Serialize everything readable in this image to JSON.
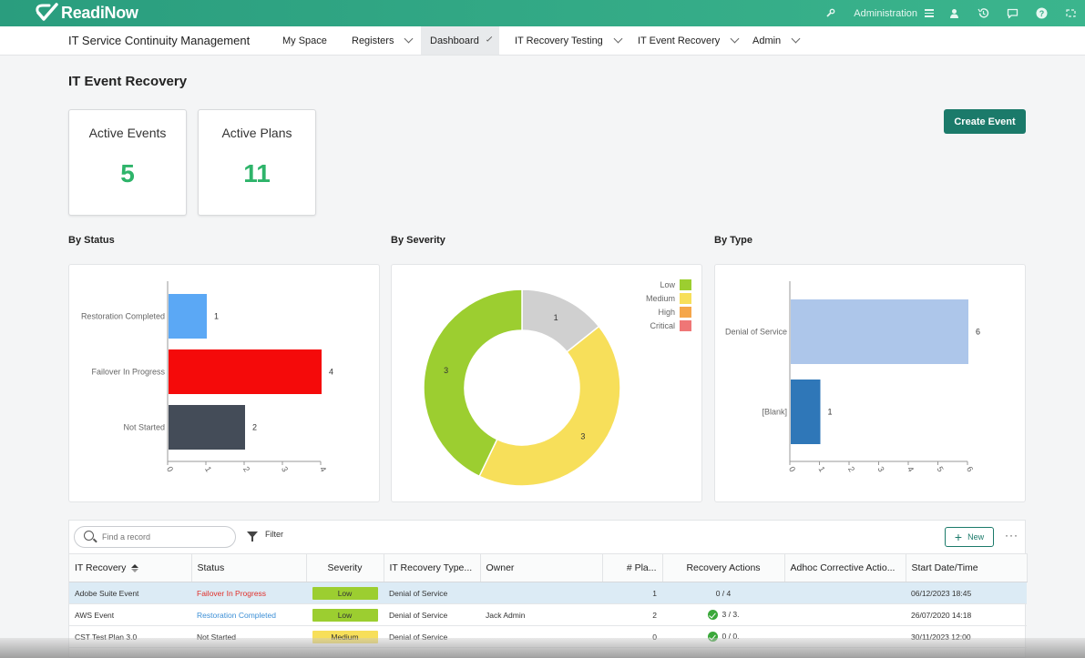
{
  "brand": {
    "name": "ReadiNow"
  },
  "topbar": {
    "admin_label": "Administration",
    "icons": [
      "wrench-icon",
      "user-icon",
      "history-icon",
      "chat-icon",
      "help-icon",
      "expand-icon"
    ]
  },
  "nav": {
    "app_name": "IT Service Continuity Management",
    "items": [
      {
        "label": "My Space",
        "has_menu": false
      },
      {
        "label": "Registers",
        "has_menu": true
      },
      {
        "label": "Dashboard",
        "has_menu": true,
        "active": true
      },
      {
        "label": "IT Recovery Testing",
        "has_menu": true
      },
      {
        "label": "IT Event Recovery",
        "has_menu": true
      },
      {
        "label": "Admin",
        "has_menu": true
      }
    ]
  },
  "page": {
    "title": "IT Event Recovery",
    "create_button": "Create Event"
  },
  "stats": [
    {
      "label": "Active Events",
      "value": "5"
    },
    {
      "label": "Active Plans",
      "value": "11"
    }
  ],
  "sections": {
    "by_status": "By Status",
    "by_severity": "By Severity",
    "by_type": "By Type"
  },
  "colors": {
    "accent": "#1b7a6a",
    "topbar": "#3bb58d",
    "stat_value": "#2eb46a"
  },
  "chart_data": [
    {
      "type": "bar",
      "orientation": "horizontal",
      "categories": [
        "Restoration Completed",
        "Failover In Progress",
        "Not Started"
      ],
      "values": [
        1,
        4,
        2
      ],
      "colors": [
        "#5ba8f5",
        "#f50a0a",
        "#444c58"
      ],
      "xlim": [
        0,
        4
      ],
      "ticks": [
        "0",
        "1",
        "2",
        "3",
        "4"
      ]
    },
    {
      "type": "pie",
      "donut": true,
      "categories": [
        "Low",
        "Medium",
        "High",
        "Critical"
      ],
      "values": [
        3,
        3,
        0,
        0
      ],
      "unlabeled_value": 1,
      "slices": [
        {
          "label": "1",
          "value": 1,
          "color": "#d0d0d0"
        },
        {
          "label": "3",
          "value": 3,
          "color": "#f7df5a"
        },
        {
          "label": "3",
          "value": 3,
          "color": "#9cce30"
        }
      ],
      "legend": [
        {
          "name": "Low",
          "color": "#9cce30"
        },
        {
          "name": "Medium",
          "color": "#f7df5a"
        },
        {
          "name": "High",
          "color": "#f5a64a"
        },
        {
          "name": "Critical",
          "color": "#ef7676"
        }
      ],
      "legend_position": "top-right"
    },
    {
      "type": "bar",
      "orientation": "horizontal",
      "categories": [
        "Denial of Service",
        "[Blank]"
      ],
      "values": [
        6,
        1
      ],
      "colors": [
        "#adc6ea",
        "#2f77b8"
      ],
      "xlim": [
        0,
        6
      ],
      "ticks": [
        "0",
        "1",
        "2",
        "3",
        "4",
        "5",
        "6"
      ]
    }
  ],
  "grid": {
    "search_placeholder": "Find a record",
    "filter_label": "Filter",
    "new_label": "New",
    "more_label": "···",
    "columns": [
      "IT Recovery",
      "Status",
      "Severity",
      "IT Recovery Type...",
      "Owner",
      "# Pla...",
      "Recovery Actions",
      "Adhoc Corrective Actio...",
      "Start Date/Time"
    ],
    "rows": [
      {
        "name": "Adobe Suite Event",
        "status": "Failover In Progress",
        "severity": "Low",
        "type": "Denial of Service",
        "owner": "",
        "plans": "1",
        "actions": "0 / 4",
        "actions_ok": false,
        "adhoc": "",
        "start": "06/12/2023 18:45"
      },
      {
        "name": "AWS Event",
        "status": "Restoration Completed",
        "severity": "Low",
        "type": "Denial of Service",
        "owner": "Jack Admin",
        "plans": "2",
        "actions": "3 / 3.",
        "actions_ok": true,
        "adhoc": "",
        "start": "26/07/2020 14:18"
      },
      {
        "name": "CST Test Plan 3.0",
        "status": "Not Started",
        "severity": "Medium",
        "type": "Denial of Service",
        "owner": "",
        "plans": "0",
        "actions": "0 / 0.",
        "actions_ok": true,
        "adhoc": "",
        "start": "30/11/2023 12:00"
      }
    ]
  }
}
